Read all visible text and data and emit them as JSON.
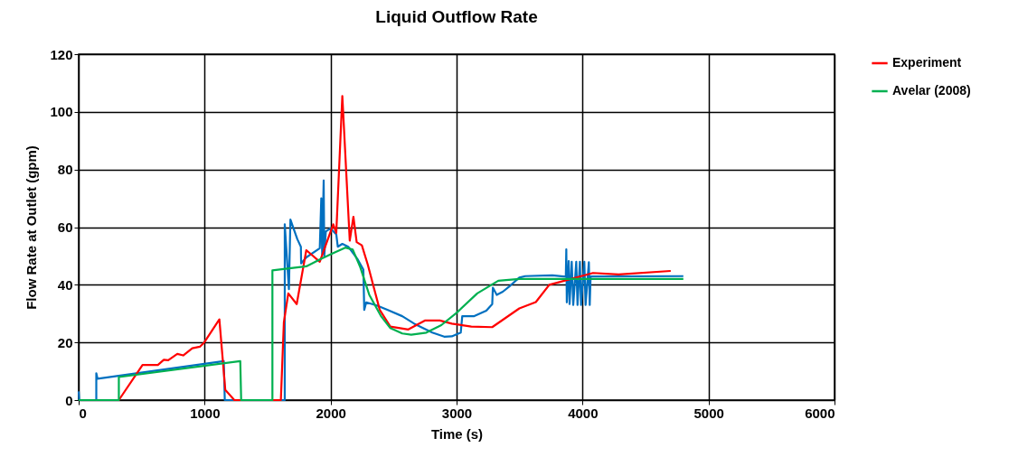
{
  "chart_data": {
    "type": "line",
    "title": "Liquid Outflow Rate",
    "xlabel": "Time (s)",
    "ylabel": "Flow Rate at Outlet (gpm)",
    "xlim": [
      0,
      6000
    ],
    "xticks": [
      0,
      1000,
      2000,
      3000,
      4000,
      5000,
      6000
    ],
    "ylim": [
      0,
      120
    ],
    "yticks": [
      0,
      20,
      40,
      60,
      80,
      100,
      120
    ],
    "grid": true,
    "legend": "right",
    "marker": "none",
    "line_style": "solid",
    "series": [
      {
        "color": "#0070c0",
        "x": [
          0,
          5,
          140,
          140,
          150,
          1152,
          1160,
          1636,
          1636,
          1669,
          1681,
          1736,
          1764,
          1766,
          1807,
          1914,
          1926,
          1933,
          1945,
          1950,
          1962,
          1998,
          2045,
          2057,
          2093,
          2140,
          2212,
          2260,
          2267,
          2283,
          2367,
          2450,
          2569,
          2664,
          2807,
          2902,
          2962,
          3033,
          3045,
          3140,
          3236,
          3283,
          3288,
          3319,
          3367,
          3426,
          3498,
          3545,
          3760,
          3867,
          3871,
          3875,
          3890,
          3897,
          3914,
          3926,
          3950,
          3960,
          3979,
          3988,
          4014,
          4024,
          4050,
          4057,
          4064,
          4800
        ],
        "values": [
          3,
          0,
          0,
          9.3,
          7.4,
          13.5,
          0,
          0,
          61,
          38.5,
          62.6,
          55.8,
          53.2,
          47.4,
          49.5,
          52.7,
          70,
          50.6,
          76.2,
          50,
          58.5,
          59.6,
          57.5,
          53.2,
          54.2,
          53.2,
          49,
          45.3,
          31.3,
          33.9,
          32.8,
          31.3,
          29.1,
          26.5,
          23.4,
          22,
          22.1,
          23.4,
          29.1,
          29.1,
          31,
          33.3,
          39,
          36.5,
          37.6,
          39.7,
          42.5,
          43,
          43.3,
          42.8,
          52.3,
          33.9,
          48.2,
          33.3,
          48,
          33,
          48,
          33,
          48,
          33,
          48,
          33,
          47.8,
          33,
          42.9,
          43
        ]
      },
      {
        "name": "Experiment",
        "color": "#ff0000",
        "x": [
          0,
          319,
          507,
          629,
          676,
          711,
          783,
          830,
          902,
          962,
          997,
          1117,
          1164,
          1236,
          1605,
          1629,
          1664,
          1731,
          1807,
          1914,
          2021,
          2045,
          2093,
          2152,
          2181,
          2207,
          2248,
          2295,
          2390,
          2474,
          2617,
          2748,
          2867,
          2962,
          3117,
          3283,
          3498,
          3629,
          3736,
          4083,
          4286,
          4700
        ],
        "values": [
          0,
          0,
          12.2,
          12.2,
          14,
          13.8,
          16,
          15.5,
          18,
          18.5,
          20,
          28,
          3.5,
          0,
          0,
          27,
          37,
          33.3,
          52,
          48,
          61,
          58,
          105.5,
          55.3,
          63.6,
          54.8,
          53.7,
          47,
          31.3,
          25.5,
          24.5,
          27.6,
          27.6,
          26.5,
          25.5,
          25.3,
          31.8,
          34,
          40,
          44.1,
          43.6,
          44.8
        ]
      },
      {
        "name": "Avelar (2008)",
        "color": "#00b050",
        "x": [
          0,
          319,
          319,
          1283,
          1290,
          1538,
          1538,
          1807,
          1926,
          2021,
          2117,
          2176,
          2236,
          2307,
          2402,
          2474,
          2569,
          2640,
          2760,
          2879,
          2998,
          3164,
          3331,
          3498,
          4800
        ],
        "values": [
          0,
          0,
          8,
          13.5,
          0,
          0,
          45,
          46.4,
          49,
          51,
          52.9,
          52.2,
          46,
          36.5,
          29,
          25,
          23.1,
          22.7,
          23.4,
          26,
          30.2,
          37,
          41.4,
          42,
          42
        ]
      }
    ]
  }
}
